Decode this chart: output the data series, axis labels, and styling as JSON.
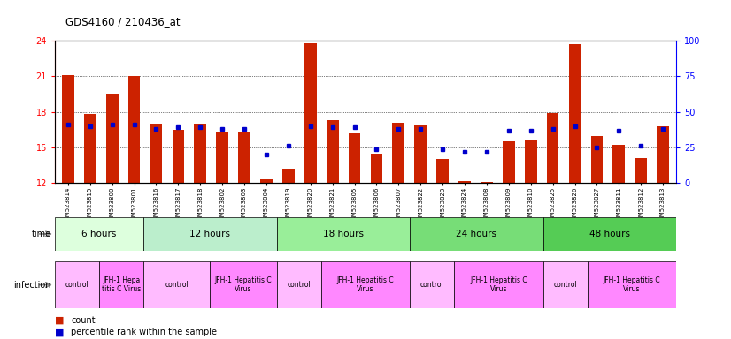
{
  "title": "GDS4160 / 210436_at",
  "samples": [
    "GSM523814",
    "GSM523815",
    "GSM523800",
    "GSM523801",
    "GSM523816",
    "GSM523817",
    "GSM523818",
    "GSM523802",
    "GSM523803",
    "GSM523804",
    "GSM523819",
    "GSM523820",
    "GSM523821",
    "GSM523805",
    "GSM523806",
    "GSM523807",
    "GSM523822",
    "GSM523823",
    "GSM523824",
    "GSM523808",
    "GSM523809",
    "GSM523810",
    "GSM523825",
    "GSM523826",
    "GSM523827",
    "GSM523811",
    "GSM523812",
    "GSM523813"
  ],
  "counts": [
    21.1,
    17.8,
    19.5,
    21.0,
    17.0,
    16.5,
    17.0,
    16.3,
    16.3,
    12.3,
    13.2,
    23.8,
    17.3,
    16.2,
    14.4,
    17.1,
    16.9,
    14.0,
    12.2,
    12.1,
    15.5,
    15.6,
    17.9,
    23.7,
    16.0,
    15.2,
    14.1,
    16.8
  ],
  "percentile_ranks": [
    41,
    40,
    41,
    41,
    38,
    39,
    39,
    38,
    38,
    20,
    26,
    40,
    39,
    39,
    24,
    38,
    38,
    24,
    22,
    22,
    37,
    37,
    38,
    40,
    25,
    37,
    26,
    38
  ],
  "ylim_left": [
    12,
    24
  ],
  "ylim_right": [
    0,
    100
  ],
  "yticks_left": [
    12,
    15,
    18,
    21,
    24
  ],
  "yticks_right": [
    0,
    25,
    50,
    75,
    100
  ],
  "bar_color": "#CC2200",
  "dot_color": "#0000CC",
  "time_groups": [
    {
      "label": "6 hours",
      "start": 0,
      "end": 4,
      "color": "#DDFFDD"
    },
    {
      "label": "12 hours",
      "start": 4,
      "end": 10,
      "color": "#BBEECC"
    },
    {
      "label": "18 hours",
      "start": 10,
      "end": 16,
      "color": "#99EE99"
    },
    {
      "label": "24 hours",
      "start": 16,
      "end": 22,
      "color": "#77DD77"
    },
    {
      "label": "48 hours",
      "start": 22,
      "end": 28,
      "color": "#55CC55"
    }
  ],
  "infection_groups": [
    {
      "label": "control",
      "start": 0,
      "end": 2,
      "color": "#FFBBFF"
    },
    {
      "label": "JFH-1 Hepa\ntitis C Virus",
      "start": 2,
      "end": 4,
      "color": "#FF88FF"
    },
    {
      "label": "control",
      "start": 4,
      "end": 7,
      "color": "#FFBBFF"
    },
    {
      "label": "JFH-1 Hepatitis C\nVirus",
      "start": 7,
      "end": 10,
      "color": "#FF88FF"
    },
    {
      "label": "control",
      "start": 10,
      "end": 12,
      "color": "#FFBBFF"
    },
    {
      "label": "JFH-1 Hepatitis C\nVirus",
      "start": 12,
      "end": 16,
      "color": "#FF88FF"
    },
    {
      "label": "control",
      "start": 16,
      "end": 18,
      "color": "#FFBBFF"
    },
    {
      "label": "JFH-1 Hepatitis C\nVirus",
      "start": 18,
      "end": 22,
      "color": "#FF88FF"
    },
    {
      "label": "control",
      "start": 22,
      "end": 24,
      "color": "#FFBBFF"
    },
    {
      "label": "JFH-1 Hepatitis C\nVirus",
      "start": 24,
      "end": 28,
      "color": "#FF88FF"
    }
  ],
  "row_label_time": "time",
  "row_label_infection": "infection",
  "legend_count_color": "#CC2200",
  "legend_percentile_color": "#0000CC"
}
